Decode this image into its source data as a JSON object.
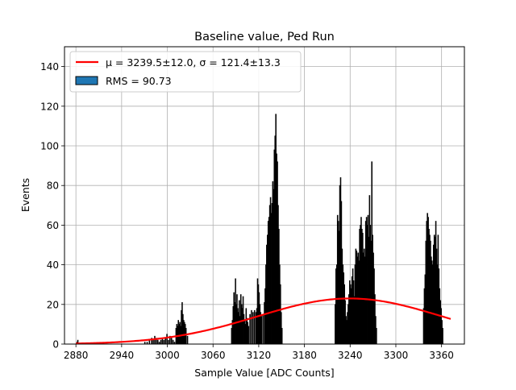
{
  "chart_data": {
    "type": "bar",
    "title": "Baseline value, Ped Run",
    "xlabel": "Sample Value [ADC Counts]",
    "ylabel": "Events",
    "xlim": [
      2865,
      3390
    ],
    "ylim": [
      0,
      150
    ],
    "xticks": [
      2880,
      2940,
      3000,
      3060,
      3120,
      3180,
      3240,
      3300,
      3360
    ],
    "yticks": [
      0,
      20,
      40,
      60,
      80,
      100,
      120,
      140
    ],
    "grid": true,
    "legend_position": "top-left",
    "legend": [
      {
        "label": "μ = 3239.5±12.0, σ = 121.4±13.3",
        "kind": "line",
        "color": "#ff0000"
      },
      {
        "label": "RMS = 90.73",
        "kind": "patch",
        "color": "#1f77b4"
      }
    ],
    "fit": {
      "name": "gaussian",
      "mu": 3239.5,
      "sigma": 121.4,
      "amplitude": 23,
      "x_range": [
        2880,
        3372
      ],
      "color": "#ff0000"
    },
    "histogram": {
      "bin_width": 1,
      "bar_color": "#000000",
      "points": [
        [
          2881,
          1
        ],
        [
          2882,
          2
        ],
        [
          2970,
          1
        ],
        [
          2973,
          1
        ],
        [
          2976,
          2
        ],
        [
          2979,
          3
        ],
        [
          2981,
          2
        ],
        [
          2983,
          4
        ],
        [
          2985,
          3
        ],
        [
          2987,
          2
        ],
        [
          2989,
          1
        ],
        [
          2991,
          2
        ],
        [
          2993,
          3
        ],
        [
          2995,
          2
        ],
        [
          2997,
          3
        ],
        [
          2999,
          5
        ],
        [
          3001,
          2
        ],
        [
          3003,
          4
        ],
        [
          3005,
          3
        ],
        [
          3007,
          2
        ],
        [
          3009,
          1
        ],
        [
          3011,
          8
        ],
        [
          3012,
          10
        ],
        [
          3013,
          9
        ],
        [
          3014,
          12
        ],
        [
          3015,
          10
        ],
        [
          3016,
          11
        ],
        [
          3017,
          9
        ],
        [
          3018,
          17
        ],
        [
          3019,
          21
        ],
        [
          3020,
          15
        ],
        [
          3021,
          12
        ],
        [
          3022,
          11
        ],
        [
          3023,
          10
        ],
        [
          3024,
          8
        ],
        [
          3026,
          4
        ],
        [
          3084,
          8
        ],
        [
          3085,
          12
        ],
        [
          3086,
          19
        ],
        [
          3087,
          26
        ],
        [
          3088,
          21
        ],
        [
          3089,
          33
        ],
        [
          3090,
          20
        ],
        [
          3091,
          25
        ],
        [
          3092,
          18
        ],
        [
          3093,
          16
        ],
        [
          3094,
          22
        ],
        [
          3095,
          14
        ],
        [
          3096,
          25
        ],
        [
          3097,
          20
        ],
        [
          3098,
          18
        ],
        [
          3099,
          24
        ],
        [
          3100,
          15
        ],
        [
          3101,
          12
        ],
        [
          3102,
          10
        ],
        [
          3103,
          18
        ],
        [
          3104,
          13
        ],
        [
          3105,
          11
        ],
        [
          3106,
          9
        ],
        [
          3108,
          15
        ],
        [
          3110,
          17
        ],
        [
          3112,
          16
        ],
        [
          3114,
          17
        ],
        [
          3116,
          16
        ],
        [
          3117,
          18
        ],
        [
          3118,
          33
        ],
        [
          3119,
          30
        ],
        [
          3120,
          26
        ],
        [
          3121,
          20
        ],
        [
          3122,
          16
        ],
        [
          3123,
          14
        ],
        [
          3125,
          15
        ],
        [
          3127,
          21
        ],
        [
          3128,
          28
        ],
        [
          3129,
          40
        ],
        [
          3130,
          50
        ],
        [
          3131,
          55
        ],
        [
          3132,
          62
        ],
        [
          3133,
          64
        ],
        [
          3134,
          70
        ],
        [
          3135,
          74
        ],
        [
          3136,
          66
        ],
        [
          3137,
          71
        ],
        [
          3138,
          82
        ],
        [
          3139,
          78
        ],
        [
          3140,
          98
        ],
        [
          3141,
          105
        ],
        [
          3142,
          116
        ],
        [
          3143,
          96
        ],
        [
          3144,
          92
        ],
        [
          3145,
          70
        ],
        [
          3146,
          58
        ],
        [
          3147,
          40
        ],
        [
          3148,
          30
        ],
        [
          3149,
          16
        ],
        [
          3150,
          8
        ],
        [
          3220,
          20
        ],
        [
          3221,
          38
        ],
        [
          3222,
          40
        ],
        [
          3223,
          65
        ],
        [
          3224,
          62
        ],
        [
          3225,
          57
        ],
        [
          3226,
          80
        ],
        [
          3227,
          84
        ],
        [
          3228,
          72
        ],
        [
          3229,
          48
        ],
        [
          3230,
          40
        ],
        [
          3231,
          36
        ],
        [
          3232,
          30
        ],
        [
          3233,
          22
        ],
        [
          3234,
          14
        ],
        [
          3235,
          12
        ],
        [
          3236,
          16
        ],
        [
          3237,
          20
        ],
        [
          3238,
          25
        ],
        [
          3239,
          32
        ],
        [
          3240,
          30
        ],
        [
          3241,
          28
        ],
        [
          3242,
          34
        ],
        [
          3243,
          38
        ],
        [
          3244,
          32
        ],
        [
          3245,
          24
        ],
        [
          3246,
          40
        ],
        [
          3247,
          48
        ],
        [
          3248,
          47
        ],
        [
          3249,
          44
        ],
        [
          3250,
          46
        ],
        [
          3251,
          42
        ],
        [
          3252,
          58
        ],
        [
          3253,
          60
        ],
        [
          3254,
          64
        ],
        [
          3255,
          58
        ],
        [
          3256,
          56
        ],
        [
          3257,
          46
        ],
        [
          3258,
          48
        ],
        [
          3259,
          44
        ],
        [
          3260,
          62
        ],
        [
          3261,
          64
        ],
        [
          3262,
          60
        ],
        [
          3263,
          65
        ],
        [
          3264,
          54
        ],
        [
          3265,
          75
        ],
        [
          3266,
          60
        ],
        [
          3267,
          52
        ],
        [
          3268,
          92
        ],
        [
          3269,
          55
        ],
        [
          3270,
          46
        ],
        [
          3271,
          38
        ],
        [
          3272,
          25
        ],
        [
          3273,
          14
        ],
        [
          3274,
          8
        ],
        [
          3336,
          18
        ],
        [
          3337,
          28
        ],
        [
          3338,
          35
        ],
        [
          3339,
          52
        ],
        [
          3340,
          62
        ],
        [
          3341,
          66
        ],
        [
          3342,
          64
        ],
        [
          3343,
          58
        ],
        [
          3344,
          55
        ],
        [
          3345,
          52
        ],
        [
          3346,
          44
        ],
        [
          3347,
          42
        ],
        [
          3348,
          40
        ],
        [
          3349,
          50
        ],
        [
          3350,
          55
        ],
        [
          3351,
          54
        ],
        [
          3352,
          62
        ],
        [
          3353,
          48
        ],
        [
          3354,
          40
        ],
        [
          3355,
          55
        ],
        [
          3356,
          38
        ],
        [
          3357,
          28
        ],
        [
          3358,
          22
        ],
        [
          3359,
          18
        ],
        [
          3360,
          12
        ],
        [
          3361,
          8
        ]
      ]
    }
  }
}
